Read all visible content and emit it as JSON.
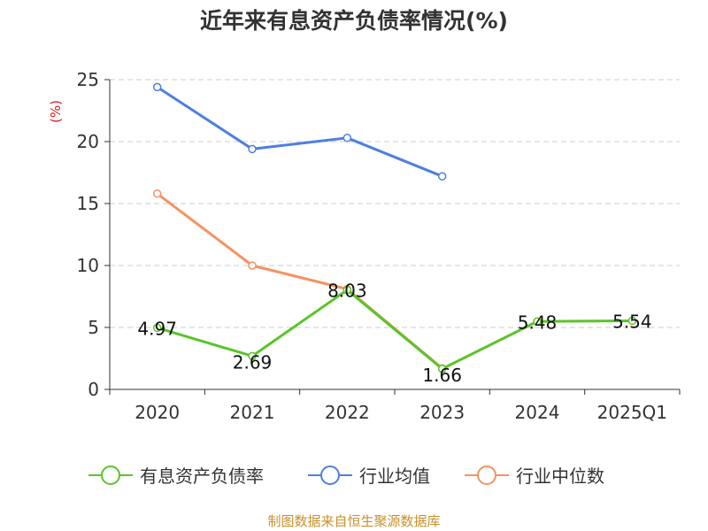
{
  "chart_data": {
    "type": "line",
    "title": "近年来有息资产负债率情况(%)",
    "ylabel": "(%)",
    "xlabel": "",
    "categories": [
      "2020",
      "2021",
      "2022",
      "2023",
      "2024",
      "2025Q1"
    ],
    "ylim": [
      0,
      25
    ],
    "yticks": [
      0,
      5,
      10,
      15,
      20,
      25
    ],
    "grid": true,
    "legend_position": "bottom-center",
    "series": [
      {
        "name": "有息资产负债率",
        "color": "#5ac42a",
        "values": [
          4.97,
          2.69,
          8.03,
          1.66,
          5.48,
          5.54
        ],
        "show_labels": true
      },
      {
        "name": "行业均值",
        "color": "#4e7fe0",
        "values": [
          24.4,
          19.4,
          20.3,
          17.2,
          null,
          null
        ],
        "show_labels": false
      },
      {
        "name": "行业中位数",
        "color": "#f59262",
        "values": [
          15.8,
          10.0,
          8.1,
          1.7,
          null,
          null
        ],
        "show_labels": false
      }
    ]
  },
  "source_text": "制图数据来自恒生聚源数据库",
  "source_color": "#c8902a",
  "ylabel_color": "#e0191b"
}
